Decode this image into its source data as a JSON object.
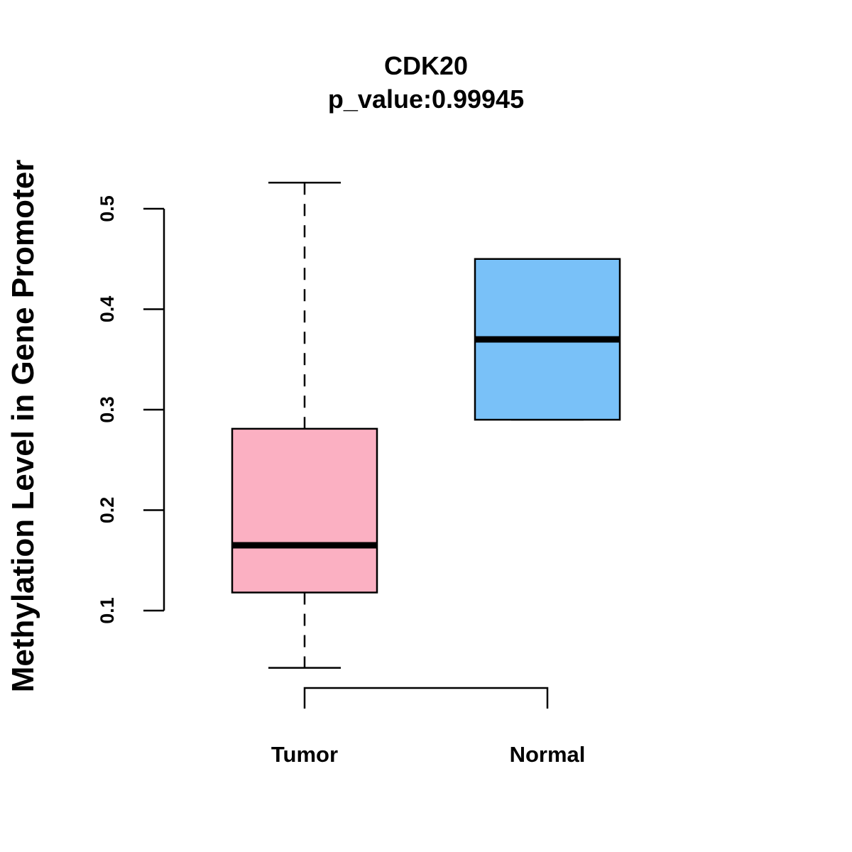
{
  "chart_data": {
    "type": "boxplot",
    "title": "CDK20",
    "subtitle": "p_value:0.99945",
    "xlabel": "",
    "ylabel": "Methylation Level in Gene Promoter",
    "ylim": [
      0.1,
      0.5
    ],
    "yticks": [
      0.1,
      0.2,
      0.3,
      0.4,
      0.5
    ],
    "ytick_labels": [
      "0.1",
      "0.2",
      "0.3",
      "0.4",
      "0.5"
    ],
    "categories": [
      "Tumor",
      "Normal"
    ],
    "series": [
      {
        "name": "Tumor",
        "color": "#FBB0C2",
        "whisker_low": 0.043,
        "q1": 0.118,
        "median": 0.165,
        "q3": 0.281,
        "whisker_high": 0.526
      },
      {
        "name": "Normal",
        "color": "#79C1F8",
        "whisker_low": 0.29,
        "q1": 0.29,
        "median": 0.37,
        "q3": 0.45,
        "whisker_high": 0.45
      }
    ],
    "comparison_bracket": [
      "Tumor",
      "Normal"
    ],
    "grid": false,
    "legend": "none"
  }
}
